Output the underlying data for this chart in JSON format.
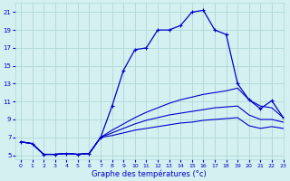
{
  "xlabel": "Graphe des températures (°c)",
  "hours": [
    0,
    1,
    2,
    3,
    4,
    5,
    6,
    7,
    8,
    9,
    10,
    11,
    12,
    13,
    14,
    15,
    16,
    17,
    18,
    19,
    20,
    21,
    22,
    23
  ],
  "temp": [
    6.5,
    6.3,
    5.1,
    5.1,
    5.2,
    5.1,
    5.2,
    7.0,
    10.5,
    14.5,
    16.8,
    17.0,
    19.0,
    19.0,
    19.5,
    21.0,
    21.2,
    19.0,
    18.5,
    13.0,
    11.2,
    10.2,
    11.1,
    9.2
  ],
  "line2": [
    6.5,
    6.3,
    5.1,
    5.1,
    5.2,
    5.1,
    5.2,
    7.0,
    7.8,
    8.5,
    9.2,
    9.8,
    10.3,
    10.8,
    11.2,
    11.5,
    11.8,
    12.0,
    12.2,
    12.5,
    11.2,
    10.5,
    10.3,
    9.2
  ],
  "line3": [
    6.5,
    6.3,
    5.1,
    5.1,
    5.2,
    5.1,
    5.2,
    7.0,
    7.5,
    8.0,
    8.5,
    8.9,
    9.2,
    9.5,
    9.7,
    9.9,
    10.1,
    10.3,
    10.4,
    10.5,
    9.5,
    9.0,
    9.0,
    8.7
  ],
  "line4": [
    6.5,
    6.3,
    5.1,
    5.1,
    5.2,
    5.1,
    5.2,
    7.0,
    7.2,
    7.5,
    7.8,
    8.0,
    8.2,
    8.4,
    8.6,
    8.7,
    8.9,
    9.0,
    9.1,
    9.2,
    8.3,
    8.0,
    8.2,
    8.0
  ],
  "line_color": "#0000cc",
  "bg_color": "#d4f0f0",
  "grid_color": "#b0d8d8",
  "ylim": [
    4.5,
    22
  ],
  "xlim": [
    -0.5,
    23
  ],
  "yticks": [
    5,
    7,
    9,
    11,
    13,
    15,
    17,
    19,
    21
  ],
  "xticks": [
    0,
    1,
    2,
    3,
    4,
    5,
    6,
    7,
    8,
    9,
    10,
    11,
    12,
    13,
    14,
    15,
    16,
    17,
    18,
    19,
    20,
    21,
    22,
    23
  ]
}
